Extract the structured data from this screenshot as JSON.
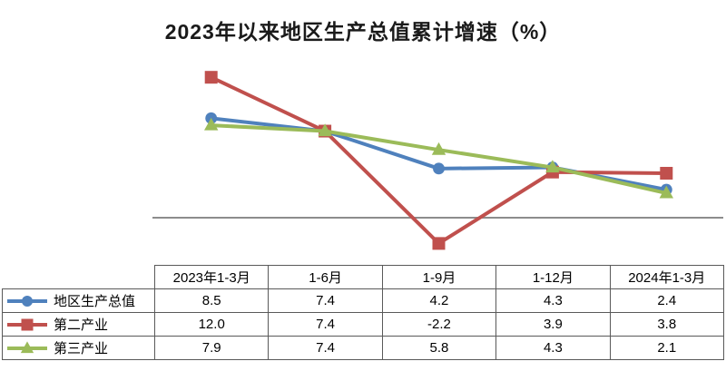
{
  "chart_data": {
    "type": "line",
    "title": "2023年以来地区生产总值累计增速（%）",
    "xlabel": "",
    "ylabel": "",
    "categories": [
      "2023年1-3月",
      "1-6月",
      "1-9月",
      "1-12月",
      "2024年1-3月"
    ],
    "series": [
      {
        "name": "地区生产总值",
        "color": "#4F81BD",
        "marker": "circle",
        "values": [
          8.5,
          7.4,
          4.2,
          4.3,
          2.4
        ]
      },
      {
        "name": "第二产业",
        "color": "#C0504D",
        "marker": "square",
        "values": [
          12.0,
          7.4,
          -2.2,
          3.9,
          3.8
        ]
      },
      {
        "name": "第三产业",
        "color": "#9BBB59",
        "marker": "triangle",
        "values": [
          7.9,
          7.4,
          5.8,
          4.3,
          2.1
        ]
      }
    ],
    "ylim": [
      -4,
      14
    ],
    "grid": false,
    "gridlines": "none",
    "legend_position": "table-left-column",
    "axis_line_color": "#8C8C8C",
    "value_format": "one-decimal"
  },
  "table": {
    "border_color": "#595959"
  }
}
